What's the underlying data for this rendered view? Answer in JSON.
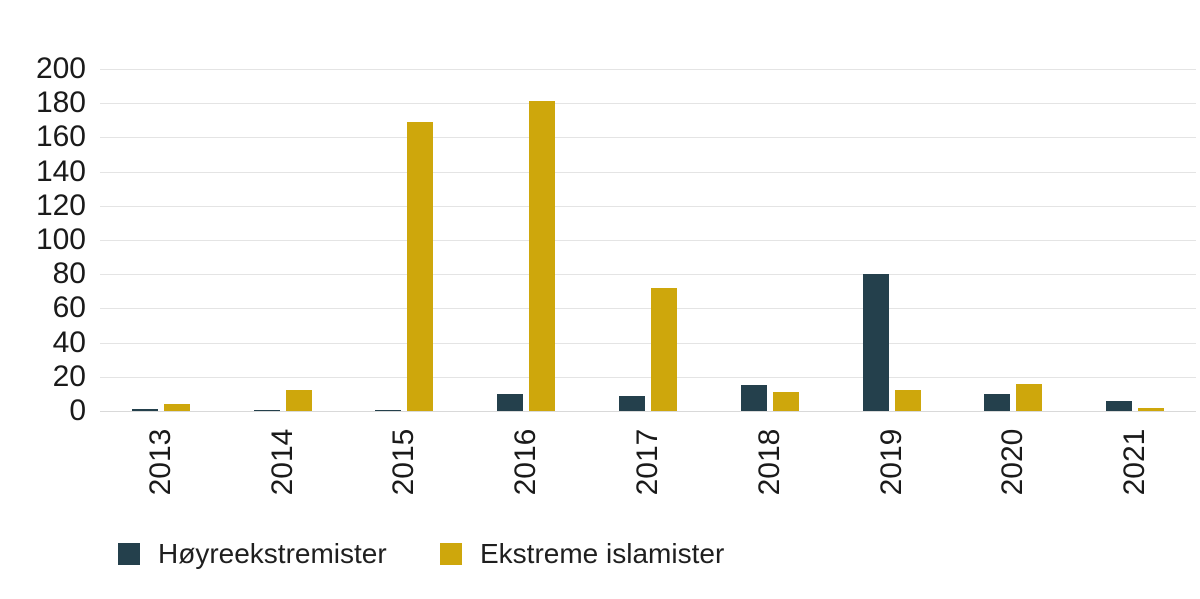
{
  "chart_data": {
    "type": "bar",
    "title": "",
    "xlabel": "",
    "ylabel": "",
    "categories": [
      "2013",
      "2014",
      "2015",
      "2016",
      "2017",
      "2018",
      "2019",
      "2020",
      "2021"
    ],
    "series": [
      {
        "name": "Høyreekstremister",
        "slug": "hoyreekstremister",
        "color": "#24404C",
        "values": [
          1,
          0,
          0,
          10,
          9,
          15,
          80,
          10,
          6
        ]
      },
      {
        "name": "Ekstreme islamister",
        "slug": "ekstreme-islamister",
        "color": "#CEA70C",
        "values": [
          4,
          12,
          169,
          181,
          72,
          11,
          12,
          16,
          2
        ]
      }
    ],
    "ylim": [
      0,
      200
    ],
    "yticks": [
      0,
      20,
      40,
      60,
      80,
      100,
      120,
      140,
      160,
      180,
      200
    ],
    "grid": true,
    "legend_position": "bottom",
    "colors": {
      "gridline": "#E4E4E4",
      "baseline": "#D9D9D9",
      "axis_text": "#1A1A1A",
      "background": "#FFFFFF"
    }
  }
}
